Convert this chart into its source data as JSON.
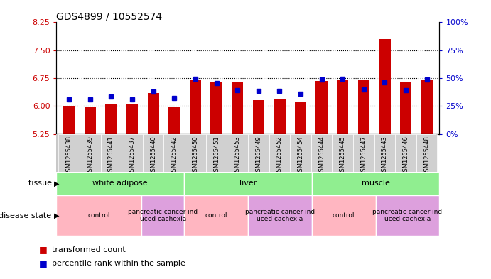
{
  "title": "GDS4899 / 10552574",
  "samples": [
    "GSM1255438",
    "GSM1255439",
    "GSM1255441",
    "GSM1255437",
    "GSM1255440",
    "GSM1255442",
    "GSM1255450",
    "GSM1255451",
    "GSM1255453",
    "GSM1255449",
    "GSM1255452",
    "GSM1255454",
    "GSM1255444",
    "GSM1255445",
    "GSM1255447",
    "GSM1255443",
    "GSM1255446",
    "GSM1255448"
  ],
  "transformed_count": [
    6.01,
    5.96,
    6.06,
    6.04,
    6.35,
    5.96,
    6.7,
    6.65,
    6.65,
    6.15,
    6.18,
    6.13,
    6.68,
    6.7,
    6.7,
    7.8,
    6.65,
    6.7
  ],
  "percentile_rank": [
    6.17,
    6.17,
    6.25,
    6.17,
    6.38,
    6.22,
    6.73,
    6.62,
    6.42,
    6.4,
    6.4,
    6.34,
    6.72,
    6.73,
    6.44,
    6.63,
    6.42,
    6.72
  ],
  "ylim_left": [
    5.25,
    8.25
  ],
  "ylim_right": [
    0,
    100
  ],
  "yticks_left": [
    5.25,
    6.0,
    6.75,
    7.5,
    8.25
  ],
  "yticks_right": [
    0,
    25,
    50,
    75,
    100
  ],
  "bar_color": "#cc0000",
  "dot_color": "#0000cc",
  "title_fontsize": 10,
  "tissue_groups": [
    {
      "label": "white adipose",
      "start": 0,
      "end": 6,
      "color": "#90ee90"
    },
    {
      "label": "liver",
      "start": 6,
      "end": 12,
      "color": "#90ee90"
    },
    {
      "label": "muscle",
      "start": 12,
      "end": 18,
      "color": "#90ee90"
    }
  ],
  "disease_groups": [
    {
      "label": "control",
      "start": 0,
      "end": 4,
      "color": "#ffb6c1"
    },
    {
      "label": "pancreatic cancer-ind\nuced cachexia",
      "start": 4,
      "end": 6,
      "color": "#dda0dd"
    },
    {
      "label": "control",
      "start": 6,
      "end": 9,
      "color": "#ffb6c1"
    },
    {
      "label": "pancreatic cancer-ind\nuced cachexia",
      "start": 9,
      "end": 12,
      "color": "#dda0dd"
    },
    {
      "label": "control",
      "start": 12,
      "end": 15,
      "color": "#ffb6c1"
    },
    {
      "label": "pancreatic cancer-ind\nuced cachexia",
      "start": 15,
      "end": 18,
      "color": "#dda0dd"
    }
  ]
}
